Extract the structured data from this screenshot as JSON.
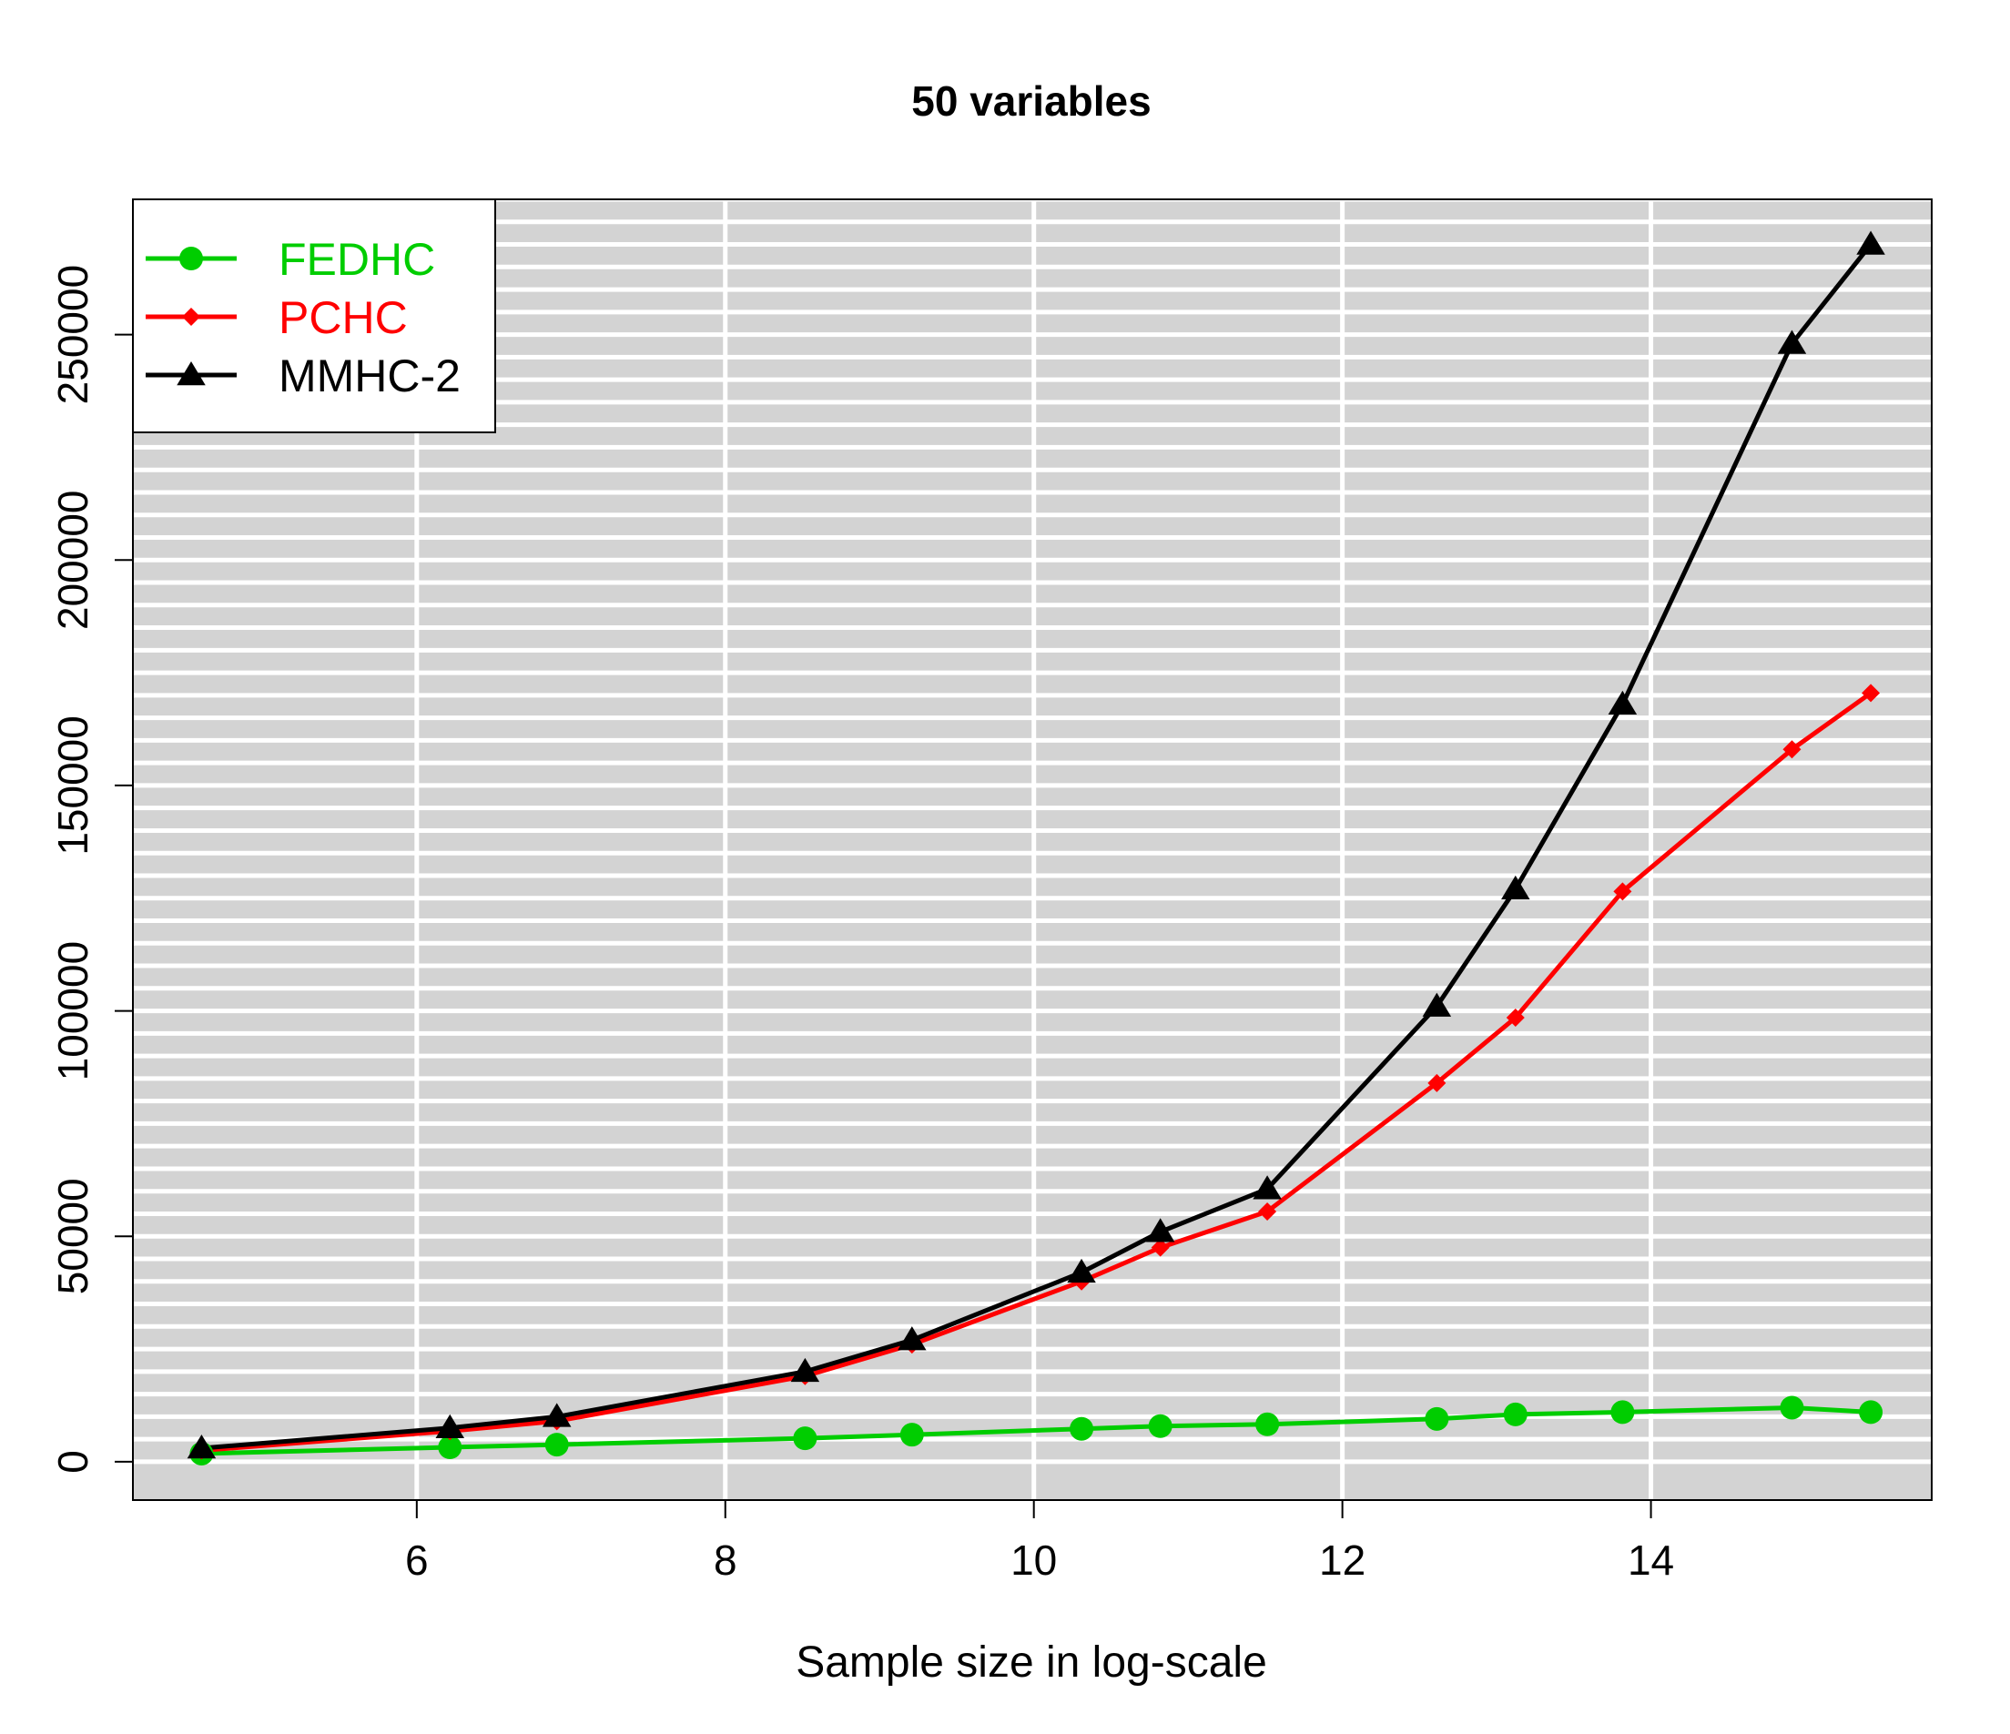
{
  "chart_data": {
    "type": "line",
    "title": "50 variables",
    "xlabel": "Sample size in log-scale",
    "ylabel": "",
    "xlim": [
      4.16,
      15.82
    ],
    "ylim": [
      -8500,
      280000
    ],
    "x_ticks": [
      6,
      8,
      10,
      12,
      14
    ],
    "y_ticks": [
      0,
      50000,
      100000,
      150000,
      200000,
      250000
    ],
    "grid": "white gridlines on grey background",
    "background": "#d3d3d3",
    "legend_position": "top-left",
    "x": [
      4.605,
      6.215,
      6.908,
      8.517,
      9.21,
      10.309,
      10.82,
      11.513,
      12.612,
      13.122,
      13.816,
      14.914,
      15.425
    ],
    "series": [
      {
        "name": "FEDHC",
        "color": "#00cd00",
        "marker": "circle",
        "values": [
          1800,
          3200,
          3800,
          5200,
          6000,
          7300,
          7900,
          8300,
          9500,
          10500,
          11000,
          12000,
          11000
        ]
      },
      {
        "name": "PCHC",
        "color": "#ff0000",
        "marker": "diamond",
        "values": [
          2500,
          6800,
          9000,
          19000,
          26000,
          40000,
          47500,
          55500,
          84000,
          98500,
          126500,
          158000,
          170500
        ]
      },
      {
        "name": "MMHC-2",
        "color": "#000000",
        "marker": "triangle",
        "values": [
          3000,
          7500,
          10000,
          20000,
          27000,
          42000,
          51000,
          60500,
          101000,
          127000,
          168000,
          248000,
          270000
        ]
      }
    ]
  }
}
